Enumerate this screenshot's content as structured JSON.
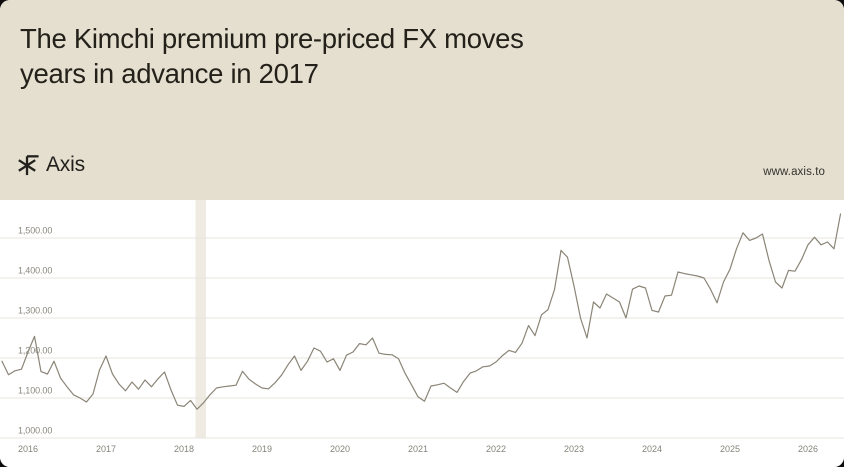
{
  "header": {
    "title_line1": "The Kimchi premium pre-priced FX moves",
    "title_line2": "years in advance in 2017",
    "logo_text": "Axis",
    "website": "www.axis.to"
  },
  "colors": {
    "header_bg": "#e5dfd0",
    "chart_bg": "#ffffff",
    "line": "#8b8577",
    "gridline": "#e7e5de",
    "y_label": "#8a877d",
    "x_label": "#85837b",
    "highlight_band": "#e5dfd0",
    "title_text": "#232119"
  },
  "chart_data": {
    "type": "line",
    "title": "The Kimchi premium pre-priced FX moves years in advance in 2017",
    "xlabel": "",
    "ylabel": "",
    "legend": "none",
    "grid": "horizontal",
    "ylim": [
      985,
      1600
    ],
    "y_tick_values": [
      1000,
      1100,
      1200,
      1300,
      1400,
      1500
    ],
    "y_tick_labels": [
      "1,000.00",
      "1,100.00",
      "1,200.00",
      "1,300.00",
      "1,400.00",
      "1,500.00"
    ],
    "x_tick_labels": [
      "2016",
      "2017",
      "2018",
      "2019",
      "2020",
      "2021",
      "2022",
      "2023",
      "2024",
      "2025",
      "2026"
    ],
    "highlight_band": {
      "from": "2018-03",
      "to": "2018-04"
    },
    "dates": [
      "2015-09",
      "2015-10",
      "2015-11",
      "2015-12",
      "2016-01",
      "2016-02",
      "2016-03",
      "2016-04",
      "2016-05",
      "2016-06",
      "2016-07",
      "2016-08",
      "2016-09",
      "2016-10",
      "2016-11",
      "2016-12",
      "2017-01",
      "2017-02",
      "2017-03",
      "2017-04",
      "2017-05",
      "2017-06",
      "2017-07",
      "2017-08",
      "2017-09",
      "2017-10",
      "2017-11",
      "2017-12",
      "2018-01",
      "2018-02",
      "2018-03",
      "2018-04",
      "2018-05",
      "2018-06",
      "2018-07",
      "2018-08",
      "2018-09",
      "2018-10",
      "2018-11",
      "2018-12",
      "2019-01",
      "2019-02",
      "2019-03",
      "2019-04",
      "2019-05",
      "2019-06",
      "2019-07",
      "2019-08",
      "2019-09",
      "2019-10",
      "2019-11",
      "2019-12",
      "2020-01",
      "2020-02",
      "2020-03",
      "2020-04",
      "2020-05",
      "2020-06",
      "2020-07",
      "2020-08",
      "2020-09",
      "2020-10",
      "2020-11",
      "2020-12",
      "2021-01",
      "2021-02",
      "2021-03",
      "2021-04",
      "2021-05",
      "2021-06",
      "2021-07",
      "2021-08",
      "2021-09",
      "2021-10",
      "2021-11",
      "2021-12",
      "2022-01",
      "2022-02",
      "2022-03",
      "2022-04",
      "2022-05",
      "2022-06",
      "2022-07",
      "2022-08",
      "2022-09",
      "2022-10",
      "2022-11",
      "2022-12",
      "2023-01",
      "2023-02",
      "2023-03",
      "2023-04",
      "2023-05",
      "2023-06",
      "2023-07",
      "2023-08",
      "2023-09",
      "2023-10",
      "2023-11",
      "2023-12",
      "2024-01",
      "2024-02",
      "2024-03",
      "2024-04",
      "2024-05",
      "2024-06",
      "2024-07",
      "2024-08",
      "2024-09",
      "2024-10",
      "2024-11",
      "2024-12",
      "2025-01",
      "2025-02",
      "2025-03",
      "2025-04",
      "2025-05",
      "2025-06",
      "2025-07",
      "2025-08",
      "2025-09",
      "2025-10",
      "2025-11",
      "2025-12",
      "2026-01",
      "2026-02",
      "2026-03",
      "2026-04",
      "2026-05",
      "2026-06"
    ],
    "values": [
      1192,
      1158,
      1168,
      1172,
      1215,
      1254,
      1166,
      1160,
      1192,
      1150,
      1128,
      1108,
      1100,
      1090,
      1110,
      1170,
      1205,
      1160,
      1135,
      1118,
      1140,
      1122,
      1145,
      1128,
      1148,
      1165,
      1120,
      1082,
      1079,
      1094,
      1072,
      1088,
      1108,
      1125,
      1128,
      1130,
      1132,
      1167,
      1147,
      1135,
      1125,
      1123,
      1138,
      1157,
      1183,
      1205,
      1169,
      1192,
      1225,
      1217,
      1190,
      1198,
      1169,
      1207,
      1215,
      1236,
      1233,
      1250,
      1212,
      1209,
      1208,
      1198,
      1162,
      1133,
      1103,
      1092,
      1130,
      1133,
      1137,
      1125,
      1114,
      1141,
      1162,
      1168,
      1178,
      1180,
      1190,
      1206,
      1219,
      1214,
      1237,
      1281,
      1256,
      1308,
      1321,
      1371,
      1469,
      1452,
      1380,
      1300,
      1250,
      1340,
      1325,
      1360,
      1350,
      1340,
      1300,
      1372,
      1380,
      1375,
      1319,
      1315,
      1355,
      1357,
      1415,
      1411,
      1408,
      1405,
      1400,
      1372,
      1338,
      1390,
      1422,
      1473,
      1513,
      1494,
      1500,
      1510,
      1444,
      1390,
      1375,
      1419,
      1417,
      1446,
      1483,
      1502,
      1483,
      1490,
      1473,
      1560
    ]
  }
}
